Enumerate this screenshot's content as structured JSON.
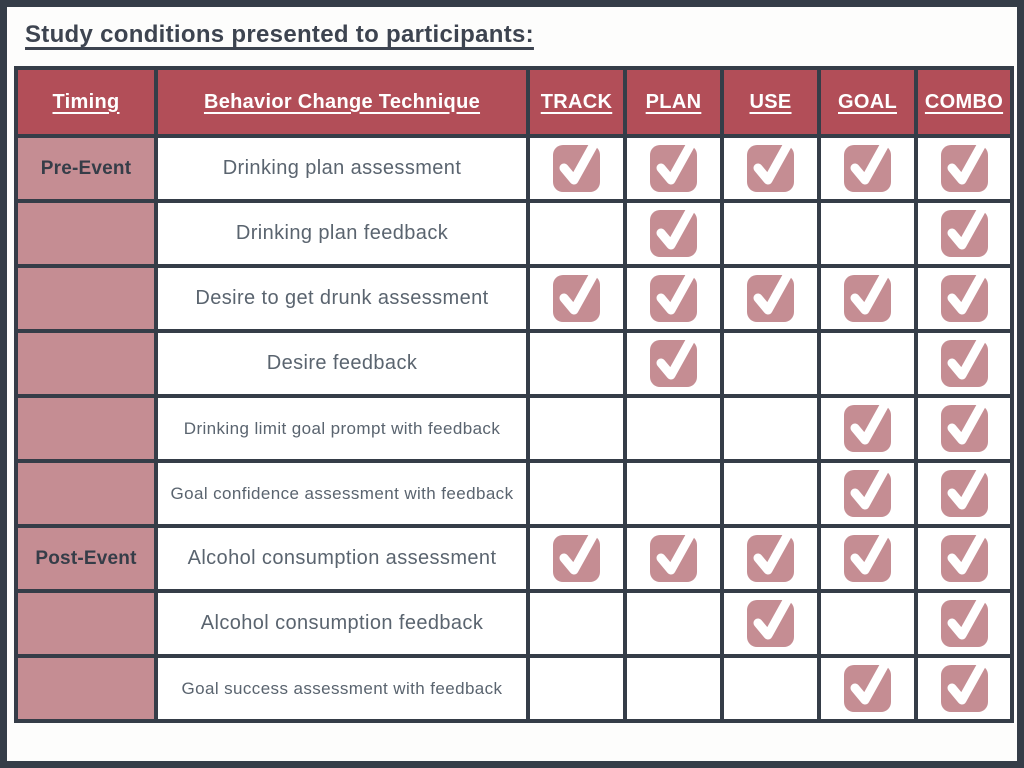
{
  "page": {
    "title": "Study conditions presented to participants:"
  },
  "colors": {
    "frame_border": "#353d48",
    "header_bg": "#b24e58",
    "accent_pink": "#c58d93",
    "grid_border": "#353d48",
    "title_text": "#3d4450",
    "body_text": "#5a646f",
    "header_text": "#ffffff",
    "check_glyph": "#ffffff"
  },
  "table": {
    "columns": [
      "Timing",
      "Behavior Change Technique",
      "TRACK",
      "PLAN",
      "USE",
      "GOAL",
      "COMBO"
    ],
    "condition_columns": [
      "TRACK",
      "PLAN",
      "USE",
      "GOAL",
      "COMBO"
    ],
    "rows": [
      {
        "timing": "Pre-Event",
        "technique": "Drinking plan assessment",
        "checks": [
          true,
          true,
          true,
          true,
          true
        ]
      },
      {
        "timing": "",
        "technique": "Drinking plan feedback",
        "checks": [
          false,
          true,
          false,
          false,
          true
        ]
      },
      {
        "timing": "",
        "technique": "Desire to get drunk assessment",
        "checks": [
          true,
          true,
          true,
          true,
          true
        ]
      },
      {
        "timing": "",
        "technique": "Desire feedback",
        "checks": [
          false,
          true,
          false,
          false,
          true
        ]
      },
      {
        "timing": "",
        "technique": "Drinking limit goal prompt with feedback",
        "checks": [
          false,
          false,
          false,
          true,
          true
        ]
      },
      {
        "timing": "",
        "technique": "Goal confidence assessment with feedback",
        "checks": [
          false,
          false,
          false,
          true,
          true
        ]
      },
      {
        "timing": "Post-Event",
        "technique": "Alcohol consumption assessment",
        "checks": [
          true,
          true,
          true,
          true,
          true
        ]
      },
      {
        "timing": "",
        "technique": "Alcohol consumption feedback",
        "checks": [
          false,
          false,
          true,
          false,
          true
        ]
      },
      {
        "timing": "",
        "technique": "Goal success assessment with feedback",
        "checks": [
          false,
          false,
          false,
          true,
          true
        ]
      }
    ],
    "check_icon": "checkmark-icon"
  }
}
